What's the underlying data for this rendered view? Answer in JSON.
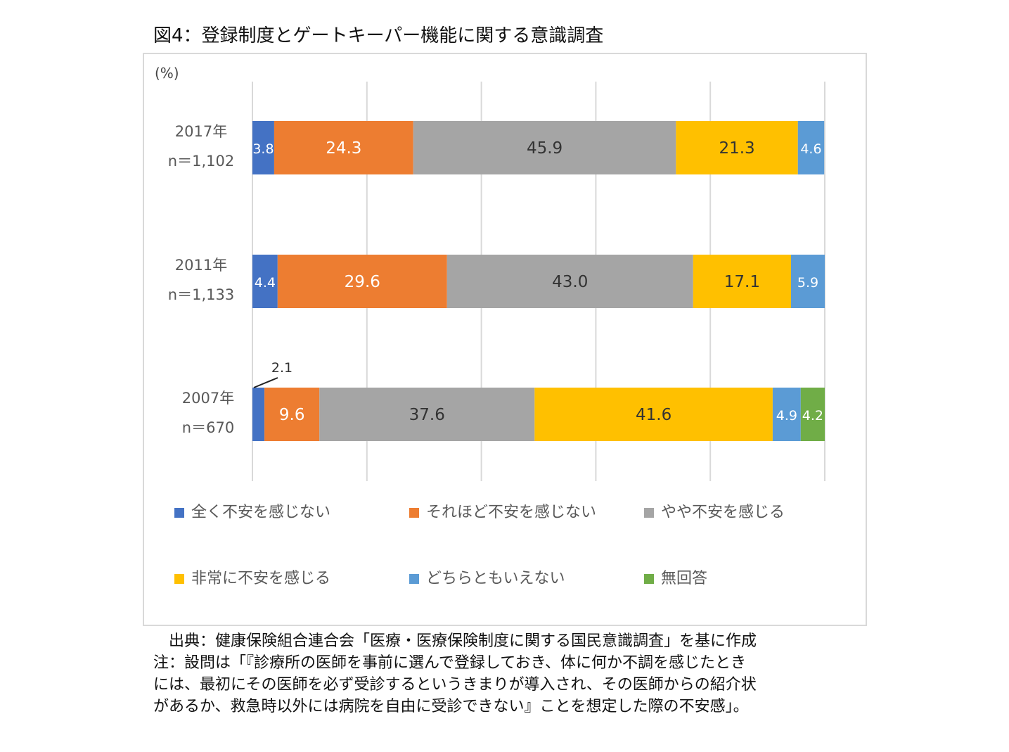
{
  "title": "図4：登録制度とゲートキーパー機能に関する意識調査",
  "chart_data": {
    "type": "bar",
    "orientation": "horizontal",
    "stacked": "percent",
    "unit_label": "(%)",
    "xlim": [
      0,
      100
    ],
    "grid": true,
    "legend_position": "bottom",
    "categories": [
      {
        "year": "2017年",
        "n": "n＝1,102"
      },
      {
        "year": "2011年",
        "n": "n＝1,133"
      },
      {
        "year": "2007年",
        "n": "n＝670"
      }
    ],
    "series": [
      {
        "name": "全く不安を感じない",
        "color": "#4472c4",
        "values": [
          3.8,
          4.4,
          2.1
        ]
      },
      {
        "name": "それほど不安を感じない",
        "color": "#ed7d31",
        "values": [
          24.3,
          29.6,
          9.6
        ]
      },
      {
        "name": "やや不安を感じる",
        "color": "#a5a5a5",
        "values": [
          45.9,
          43.0,
          37.6
        ]
      },
      {
        "name": "非常に不安を感じる",
        "color": "#ffc000",
        "values": [
          21.3,
          17.1,
          41.6
        ]
      },
      {
        "name": "どちらともいえない",
        "color": "#5b9bd5",
        "values": [
          4.6,
          5.9,
          4.9
        ]
      },
      {
        "name": "無回答",
        "color": "#70ad47",
        "values": [
          0,
          0,
          4.2
        ]
      }
    ]
  },
  "notes": [
    "　出典：健康保険組合連合会「医療・医療保険制度に関する国民意識調査」を基に作成",
    "注：設問は「『診療所の医師を事前に選んで登録しておき、体に何か不調を感じたとき",
    "には、最初にその医師を必ず受診するというきまりが導入され、その医師からの紹介状",
    "があるか、救急時以外には病院を自由に受診できない』ことを想定した際の不安感」。"
  ]
}
